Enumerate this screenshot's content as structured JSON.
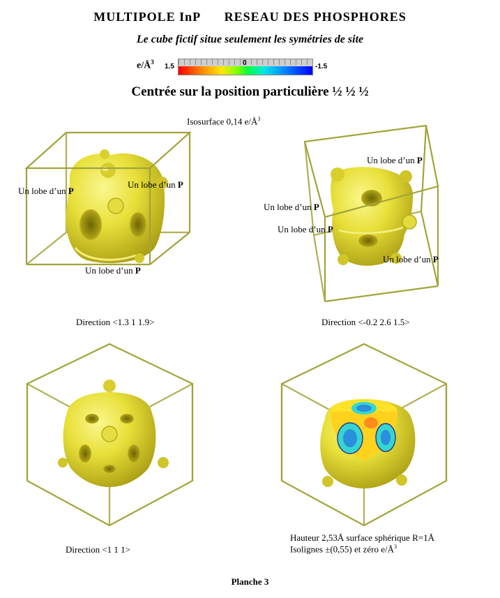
{
  "header": {
    "title_left": "MULTIPOLE InP",
    "title_right": "RESEAU DES PHOSPHORES",
    "subtitle": "Le cube fictif situe seulement les symétries de site",
    "heading": "Centrée sur la position particulière  ½ ½ ½"
  },
  "colorbar": {
    "unit_label": "e/Å",
    "unit_exponent": "3",
    "max_label": "1.5",
    "zero_label": "0",
    "min_label": "-1.5",
    "colors": [
      "#ff0000",
      "#ff8c00",
      "#ffe600",
      "#7fff00",
      "#00ff40",
      "#00e6e6",
      "#0080ff",
      "#0000ff"
    ]
  },
  "isosurface": {
    "text": "Isosurface  0,14 e/Å",
    "exponent": "3"
  },
  "panels": {
    "top_left": {
      "lobe_labels": [
        "Un lobe d’un",
        "Un lobe d’un",
        "Un lobe d’un"
      ],
      "lobe_suffix": "P",
      "caption": "Direction <1.3  1  1.9>"
    },
    "top_right": {
      "lobe_labels": [
        "Un lobe d’un",
        "Un lobe d’un",
        "Un lobe d’un",
        "Un lobe d’un"
      ],
      "lobe_suffix": "P",
      "caption": "Direction <-0.2  2.6  1.5>"
    },
    "bottom_left": {
      "caption": "Direction <1  1  1>"
    },
    "bottom_right": {
      "caption_line1": "Hauteur 2,53Å   surface sphérique R=1Å",
      "caption_line2": "Isolignes  ±(0,55) et zéro e/Å",
      "caption_exponent": "3"
    }
  },
  "footer": {
    "text": "Planche 3"
  },
  "colors": {
    "cube_edge": "#a3a33a",
    "surface_fill": "#e8e03a",
    "surface_shade": "#b8ad1a",
    "surface_highlight": "#fbf78e",
    "cut_blue": "#2a8fdc",
    "cut_cyan": "#36d6d0",
    "cut_orange": "#ff8a1e"
  }
}
